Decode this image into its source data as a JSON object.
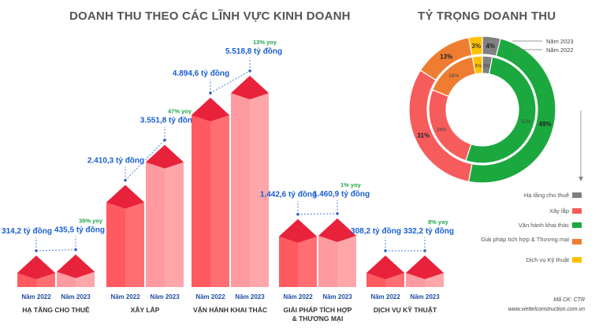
{
  "titles": {
    "left": "DOANH THU THEO CÁC LĨNH VỰC KINH DOANH",
    "right": "TỶ TRỌNG DOANH THU"
  },
  "colors": {
    "bar2022": "#ff5a5f",
    "bar2023": "#ff9aa0",
    "top": "#e8223a",
    "value": "#1a5fd1",
    "yoy": "#22a64a",
    "gray": "#808080",
    "red": "#f75c5c",
    "green": "#1ba83e",
    "orange": "#ef7d31",
    "yellow": "#ffc000"
  },
  "chart_data": [
    {
      "type": "bar",
      "title": "DOANH THU THEO CÁC LĨNH VỰC KINH DOANH",
      "categories": [
        "HẠ TẦNG CHO THUÊ",
        "XÂY LẮP",
        "VẬN HÀNH KHAI THÁC",
        "GIẢI PHÁP TÍCH HỢP & THƯƠNG MẠI",
        "DỊCH VỤ KỸ THUẬT"
      ],
      "category_lines": [
        [
          "HẠ TẦNG CHO THUÊ"
        ],
        [
          "XÂY LẮP"
        ],
        [
          "VẬN HÀNH KHAI THÁC"
        ],
        [
          "GIẢI PHÁP TÍCH HỢP",
          "& THƯƠNG MẠI"
        ],
        [
          "DỊCH VỤ KỸ THUẬT"
        ]
      ],
      "series": [
        {
          "name": "Năm 2022",
          "values": [
            314.2,
            2410.3,
            4894.6,
            1442.6,
            308.2
          ],
          "labels": [
            "314,2 tỷ đồng",
            "2.410,3 tỷ đồng",
            "4.894,6 tỷ đồng",
            "1.442,6 tỷ đồng",
            "308,2 tỷ đồng"
          ]
        },
        {
          "name": "Năm 2023",
          "values": [
            435.5,
            3551.8,
            5518.8,
            1460.9,
            332.2
          ],
          "labels": [
            "435,5 tỷ đồng",
            "3.551,8 tỷ đồng",
            "5.518,8 tỷ đồng",
            "1.460,9 tỷ đồng",
            "332,2 tỷ đồng"
          ]
        }
      ],
      "yoy": [
        "39% yoy",
        "47% yoy",
        "13% yoy",
        "1% yoy",
        "8% yoy"
      ],
      "unit": "tỷ đồng"
    },
    {
      "type": "pie",
      "title": "TỶ TRỌNG DOANH THU",
      "categories": [
        "Hạ tầng cho thuê",
        "Xây lắp",
        "Vận hành khai thác",
        "Giải pháp tích hợp & Thương mại",
        "Dịch vụ Kỹ thuật"
      ],
      "series": [
        {
          "name": "Năm 2023",
          "values": [
            4,
            31,
            49,
            13,
            3
          ],
          "labels": [
            "4%",
            "31%",
            "49%",
            "13%",
            "3%"
          ]
        },
        {
          "name": "Năm 2022",
          "values": [
            3,
            26,
            52,
            16,
            3
          ],
          "labels": [
            "3%",
            "26%",
            "52%",
            "16%",
            "3%"
          ]
        }
      ],
      "legend_position": "bottom-right"
    }
  ],
  "footer": {
    "code": "Mã CK: CTR",
    "website": "www.viettelconstruction.com.vn"
  }
}
